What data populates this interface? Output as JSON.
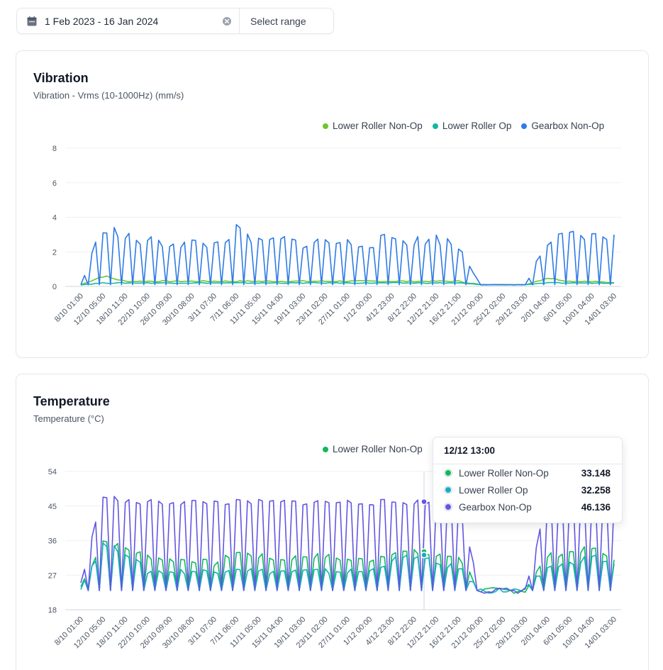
{
  "date_filter": {
    "range_text": "1 Feb 2023 - 16 Jan 2024",
    "select_label": "Select range"
  },
  "colors": {
    "lower_roller_non_op_vibration": "#6cc72f",
    "lower_roller_op_vibration": "#14b8a6",
    "gearbox_non_op_vibration": "#2f7be6",
    "lower_roller_non_op_temp": "#10b95a",
    "lower_roller_op_temp": "#16adc0",
    "gearbox_non_op_temp": "#6256e3"
  },
  "vibration": {
    "title": "Vibration",
    "subtitle": "Vibration - Vrms (10-1000Hz) (mm/s)",
    "legend": [
      "Lower Roller Non-Op",
      "Lower Roller Op",
      "Gearbox Non-Op"
    ]
  },
  "temperature": {
    "title": "Temperature",
    "subtitle": "Temperature (°C)",
    "legend": [
      "Lower Roller Non-Op"
    ],
    "tooltip": {
      "time": "12/12 13:00",
      "rows": [
        {
          "name": "Lower Roller Non-Op",
          "value": "33.148"
        },
        {
          "name": "Lower Roller Op",
          "value": "32.258"
        },
        {
          "name": "Gearbox Non-Op",
          "value": "46.136"
        }
      ]
    }
  },
  "chart_data": [
    {
      "type": "line",
      "title": "Vibration",
      "ylabel": "Vibration - Vrms (10-1000Hz) (mm/s)",
      "ylim": [
        0,
        8
      ],
      "yticks": [
        0,
        2,
        4,
        6,
        8
      ],
      "x_tick_labels": [
        "8/10 01:00",
        "12/10 05:00",
        "18/10 11:00",
        "22/10 10:00",
        "26/10 09:00",
        "30/10 08:00",
        "3/11 07:00",
        "7/11 06:00",
        "11/11 05:00",
        "15/11 04:00",
        "19/11 03:00",
        "23/11 02:00",
        "27/11 01:00",
        "1/12 00:00",
        "4/12 23:00",
        "8/12 22:00",
        "12/12 21:00",
        "16/12 21:00",
        "21/12 00:00",
        "25/12 02:00",
        "29/12 03:00",
        "2/01 04:00",
        "6/01 05:00",
        "10/01 04:00",
        "14/01 03:00"
      ],
      "grid": true,
      "legend_position": "top-right",
      "series": [
        {
          "name": "Lower Roller Non-Op",
          "x": [
            0,
            1,
            2,
            3,
            4,
            5,
            6,
            7,
            8,
            9,
            10,
            11,
            12,
            13,
            14,
            15,
            16,
            17,
            18,
            19,
            20,
            21,
            22,
            23,
            24
          ],
          "values": [
            0.1,
            0.6,
            0.3,
            0.3,
            0.3,
            0.3,
            0.3,
            0.3,
            0.3,
            0.3,
            0.3,
            0.3,
            0.3,
            0.3,
            0.3,
            0.3,
            0.3,
            0.3,
            0.1,
            0.1,
            0.1,
            0.5,
            0.3,
            0.3,
            0.2
          ]
        },
        {
          "name": "Lower Roller Op",
          "x": [
            0,
            1,
            2,
            3,
            4,
            5,
            6,
            7,
            8,
            9,
            10,
            11,
            12,
            13,
            14,
            15,
            16,
            17,
            18,
            19,
            20,
            21,
            22,
            23,
            24
          ],
          "values": [
            0.1,
            0.2,
            0.2,
            0.2,
            0.2,
            0.2,
            0.2,
            0.2,
            0.2,
            0.2,
            0.2,
            0.2,
            0.2,
            0.2,
            0.2,
            0.2,
            0.2,
            0.2,
            0.1,
            0.1,
            0.1,
            0.2,
            0.2,
            0.2,
            0.2
          ]
        },
        {
          "name": "Gearbox Non-Op",
          "x": [
            0,
            1,
            2,
            3,
            4,
            5,
            6,
            7,
            8,
            9,
            10,
            11,
            12,
            13,
            14,
            15,
            16,
            17,
            18,
            19,
            20,
            21,
            22,
            23,
            24
          ],
          "values": [
            0.1,
            3.5,
            2.8,
            2.6,
            2.5,
            2.5,
            2.4,
            3.2,
            2.5,
            2.7,
            2.5,
            2.6,
            2.5,
            2.5,
            2.8,
            2.6,
            2.8,
            2.3,
            0.1,
            0.1,
            0.1,
            2.5,
            2.9,
            2.8,
            3.0
          ]
        }
      ]
    },
    {
      "type": "line",
      "title": "Temperature",
      "ylabel": "Temperature (°C)",
      "ylim": [
        18,
        54
      ],
      "yticks": [
        18,
        27,
        36,
        45,
        54
      ],
      "x_tick_labels": [
        "8/10 01:00",
        "12/10 05:00",
        "18/10 11:00",
        "22/10 10:00",
        "26/10 09:00",
        "30/10 08:00",
        "3/11 07:00",
        "7/11 06:00",
        "11/11 05:00",
        "15/11 04:00",
        "19/11 03:00",
        "23/11 02:00",
        "27/11 01:00",
        "1/12 00:00",
        "4/12 23:00",
        "8/12 22:00",
        "12/12 21:00",
        "16/12 21:00",
        "21/12 00:00",
        "25/12 02:00",
        "29/12 03:00",
        "2/01 04:00",
        "6/01 05:00",
        "10/01 04:00",
        "14/01 03:00"
      ],
      "grid": true,
      "legend_position": "top-right",
      "series": [
        {
          "name": "Lower Roller Non-Op",
          "x": [
            0,
            1,
            2,
            3,
            4,
            5,
            6,
            7,
            8,
            9,
            10,
            11,
            12,
            13,
            14,
            15,
            16,
            17,
            18,
            19,
            20,
            21,
            22,
            23,
            24
          ],
          "values": [
            24,
            36,
            34,
            32,
            31,
            31,
            30,
            33,
            32,
            31,
            32,
            32,
            31,
            31,
            33,
            33,
            32,
            32,
            23,
            23,
            23,
            32,
            33,
            34,
            31
          ]
        },
        {
          "name": "Lower Roller Op",
          "x": [
            0,
            1,
            2,
            3,
            4,
            5,
            6,
            7,
            8,
            9,
            10,
            11,
            12,
            13,
            14,
            15,
            16,
            17,
            18,
            19,
            20,
            21,
            22,
            23,
            24
          ],
          "values": [
            24,
            35,
            33,
            28,
            28,
            28,
            28,
            29,
            28,
            28,
            28,
            28,
            28,
            28,
            31,
            32,
            30,
            29,
            23,
            23,
            23,
            29,
            30,
            32,
            30
          ]
        },
        {
          "name": "Gearbox Non-Op",
          "x": [
            0,
            1,
            2,
            3,
            4,
            5,
            6,
            7,
            8,
            9,
            10,
            11,
            12,
            13,
            14,
            15,
            16,
            17,
            18,
            19,
            20,
            21,
            22,
            23,
            24
          ],
          "values": [
            25,
            48,
            46,
            46,
            46,
            46,
            46,
            46,
            46,
            46,
            46,
            46,
            46,
            46,
            46,
            46,
            46,
            46,
            23,
            23,
            23,
            46,
            46,
            46,
            46
          ]
        }
      ]
    }
  ]
}
